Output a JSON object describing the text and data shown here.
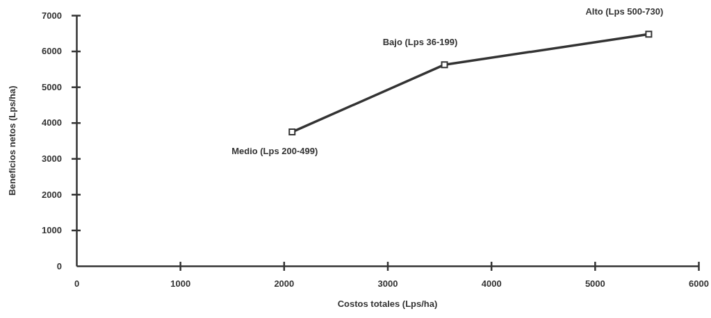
{
  "chart_data": {
    "type": "line",
    "xlabel": "Costos totales (Lps/ha)",
    "ylabel": "Beneficios netos (Lps/ha)",
    "x": [
      2080,
      3550,
      5520
    ],
    "series": [
      {
        "color": "#333333",
        "values": [
          3740,
          5620,
          6470
        ]
      }
    ],
    "xlim": [
      0,
      6000
    ],
    "xticks": [
      0,
      1000,
      2000,
      3000,
      4000,
      5000,
      6000
    ],
    "ylim": [
      0,
      7000
    ],
    "yticks": [
      0,
      1000,
      2000,
      3000,
      4000,
      5000,
      6000,
      7000
    ],
    "grid": false,
    "marker": "square",
    "line_style": "solid",
    "annotations": [
      {
        "text": "Medio (Lps 200-499)",
        "x": 2080,
        "y": 3740
      },
      {
        "text": "Bajo (Lps 36-199)",
        "x": 3550,
        "y": 5620
      },
      {
        "text": "Alto (Lps 500-730)",
        "x": 5520,
        "y": 6470
      }
    ]
  }
}
